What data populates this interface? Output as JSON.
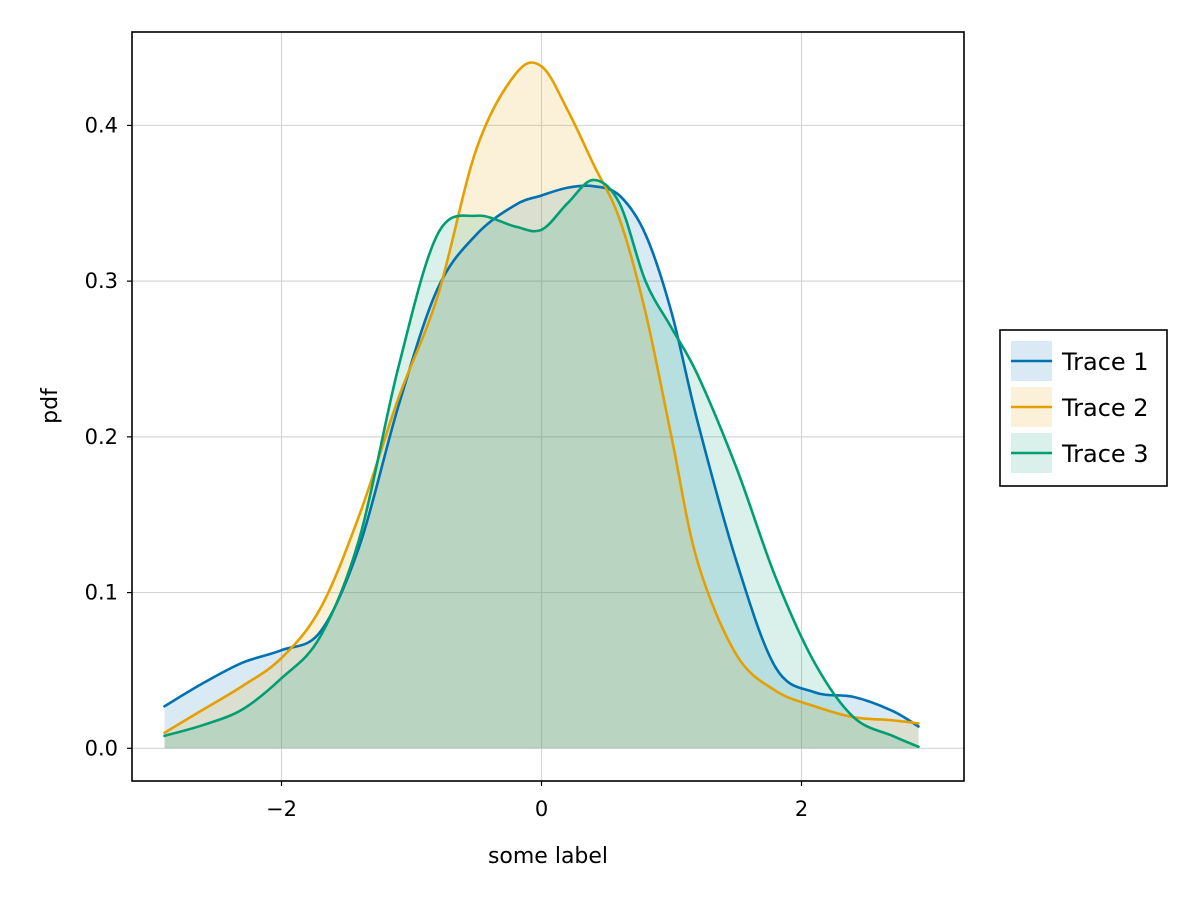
{
  "chart_data": {
    "type": "area",
    "title": "",
    "xlabel": "some label",
    "ylabel": "pdf",
    "xlim": [
      -3.15,
      3.25
    ],
    "ylim": [
      -0.021,
      0.46
    ],
    "xticks": [
      -2,
      0,
      2
    ],
    "xtick_labels": [
      "−2",
      "0",
      "2"
    ],
    "yticks": [
      0.0,
      0.1,
      0.2,
      0.3,
      0.4
    ],
    "ytick_labels": [
      "0.0",
      "0.1",
      "0.2",
      "0.3",
      "0.4"
    ],
    "grid": true,
    "legend_position": "right",
    "colors": [
      "#0072b2",
      "#e69f00",
      "#009e73"
    ],
    "fill_alpha": 0.15,
    "x": [
      -2.9,
      -2.6,
      -2.3,
      -2.0,
      -1.7,
      -1.4,
      -1.1,
      -0.8,
      -0.5,
      -0.2,
      0.0,
      0.2,
      0.4,
      0.6,
      0.8,
      1.0,
      1.2,
      1.5,
      1.8,
      2.1,
      2.4,
      2.7,
      2.9
    ],
    "series": [
      {
        "name": "Trace 1",
        "values": [
          0.027,
          0.042,
          0.055,
          0.063,
          0.075,
          0.13,
          0.22,
          0.295,
          0.33,
          0.349,
          0.355,
          0.36,
          0.361,
          0.355,
          0.33,
          0.28,
          0.21,
          0.12,
          0.052,
          0.036,
          0.033,
          0.024,
          0.014
        ]
      },
      {
        "name": "Trace 2",
        "values": [
          0.01,
          0.025,
          0.04,
          0.058,
          0.09,
          0.15,
          0.225,
          0.29,
          0.385,
          0.433,
          0.438,
          0.41,
          0.375,
          0.34,
          0.28,
          0.2,
          0.12,
          0.06,
          0.037,
          0.027,
          0.02,
          0.018,
          0.016
        ]
      },
      {
        "name": "Trace 3",
        "values": [
          0.008,
          0.015,
          0.025,
          0.045,
          0.072,
          0.135,
          0.245,
          0.33,
          0.342,
          0.335,
          0.333,
          0.35,
          0.365,
          0.35,
          0.3,
          0.27,
          0.24,
          0.18,
          0.11,
          0.055,
          0.02,
          0.008,
          0.001
        ]
      }
    ]
  }
}
